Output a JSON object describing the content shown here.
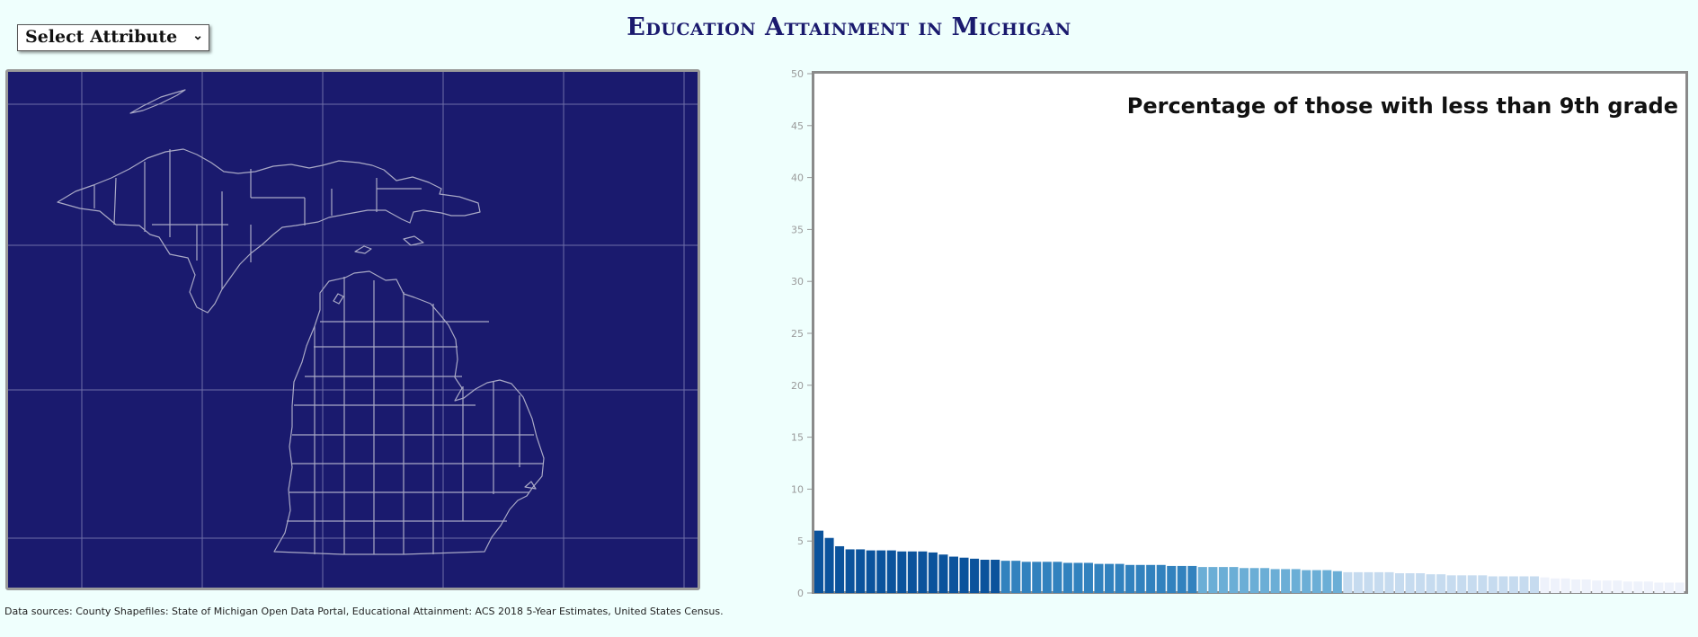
{
  "header": {
    "title": "Education Attainment in Michigan",
    "select_label": "Select Attribute"
  },
  "footer": {
    "sources": "Data sources: County Shapefiles: State of Michigan Open Data Portal, Educational Attainment: ACS 2018 5-Year Estimates, United States Census."
  },
  "map": {
    "background_color": "#1a1a6e",
    "line_color": "#9a9a9a"
  },
  "chart_data": {
    "type": "bar",
    "title": "Percentage of those with less than 9th grade",
    "xlabel": "",
    "ylabel": "",
    "ylim": [
      0,
      50
    ],
    "yticks": [
      0,
      5,
      10,
      15,
      20,
      25,
      30,
      35,
      40,
      45,
      50
    ],
    "grid": false,
    "values": [
      6.0,
      5.3,
      4.5,
      4.2,
      4.2,
      4.1,
      4.1,
      4.1,
      4.0,
      4.0,
      4.0,
      3.9,
      3.7,
      3.5,
      3.4,
      3.3,
      3.2,
      3.2,
      3.1,
      3.1,
      3.0,
      3.0,
      3.0,
      3.0,
      2.9,
      2.9,
      2.9,
      2.8,
      2.8,
      2.8,
      2.7,
      2.7,
      2.7,
      2.7,
      2.6,
      2.6,
      2.6,
      2.5,
      2.5,
      2.5,
      2.5,
      2.4,
      2.4,
      2.4,
      2.3,
      2.3,
      2.3,
      2.2,
      2.2,
      2.2,
      2.1,
      2.0,
      2.0,
      2.0,
      2.0,
      2.0,
      1.9,
      1.9,
      1.9,
      1.8,
      1.8,
      1.7,
      1.7,
      1.7,
      1.7,
      1.6,
      1.6,
      1.6,
      1.6,
      1.6,
      1.5,
      1.4,
      1.4,
      1.3,
      1.3,
      1.2,
      1.2,
      1.2,
      1.1,
      1.1,
      1.1,
      1.0,
      1.0,
      1.0
    ],
    "color_classes": [
      {
        "min": 3.2,
        "color": "#0b539c"
      },
      {
        "min": 2.6,
        "color": "#3282be"
      },
      {
        "min": 2.05,
        "color": "#6baed6"
      },
      {
        "min": 1.55,
        "color": "#c6dbef"
      },
      {
        "min": 0,
        "color": "#eef2fb"
      }
    ]
  }
}
